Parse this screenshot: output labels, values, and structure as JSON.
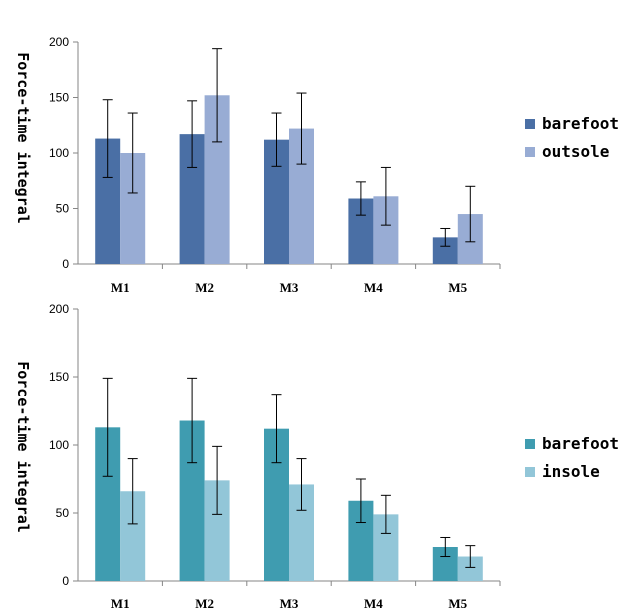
{
  "chart_data": [
    {
      "type": "bar",
      "categories": [
        "M1",
        "M2",
        "M3",
        "M4",
        "M5"
      ],
      "series": [
        {
          "name": "barefoot",
          "values": [
            113,
            117,
            112,
            59,
            24
          ],
          "errors": [
            35,
            30,
            24,
            15,
            8
          ],
          "color": "#4a6fa5"
        },
        {
          "name": "outsole",
          "values": [
            100,
            152,
            122,
            61,
            45
          ],
          "errors": [
            36,
            42,
            32,
            26,
            25
          ],
          "color": "#98acd4"
        }
      ],
      "ylabel": "Force-time integral",
      "ylim": [
        0,
        200
      ],
      "yticks": [
        0,
        50,
        100,
        150,
        200
      ],
      "grid": false,
      "legend_position": "right"
    },
    {
      "type": "bar",
      "categories": [
        "M1",
        "M2",
        "M3",
        "M4",
        "M5"
      ],
      "series": [
        {
          "name": "barefoot",
          "values": [
            113,
            118,
            112,
            59,
            25
          ],
          "errors": [
            36,
            31,
            25,
            16,
            7
          ],
          "color": "#3f9cb0"
        },
        {
          "name": "insole",
          "values": [
            66,
            74,
            71,
            49,
            18
          ],
          "errors": [
            24,
            25,
            19,
            14,
            8
          ],
          "color": "#92c6d8"
        }
      ],
      "ylabel": "Force-time integral",
      "ylim": [
        0,
        200
      ],
      "yticks": [
        0,
        50,
        100,
        150,
        200
      ],
      "grid": false,
      "legend_position": "right"
    }
  ]
}
